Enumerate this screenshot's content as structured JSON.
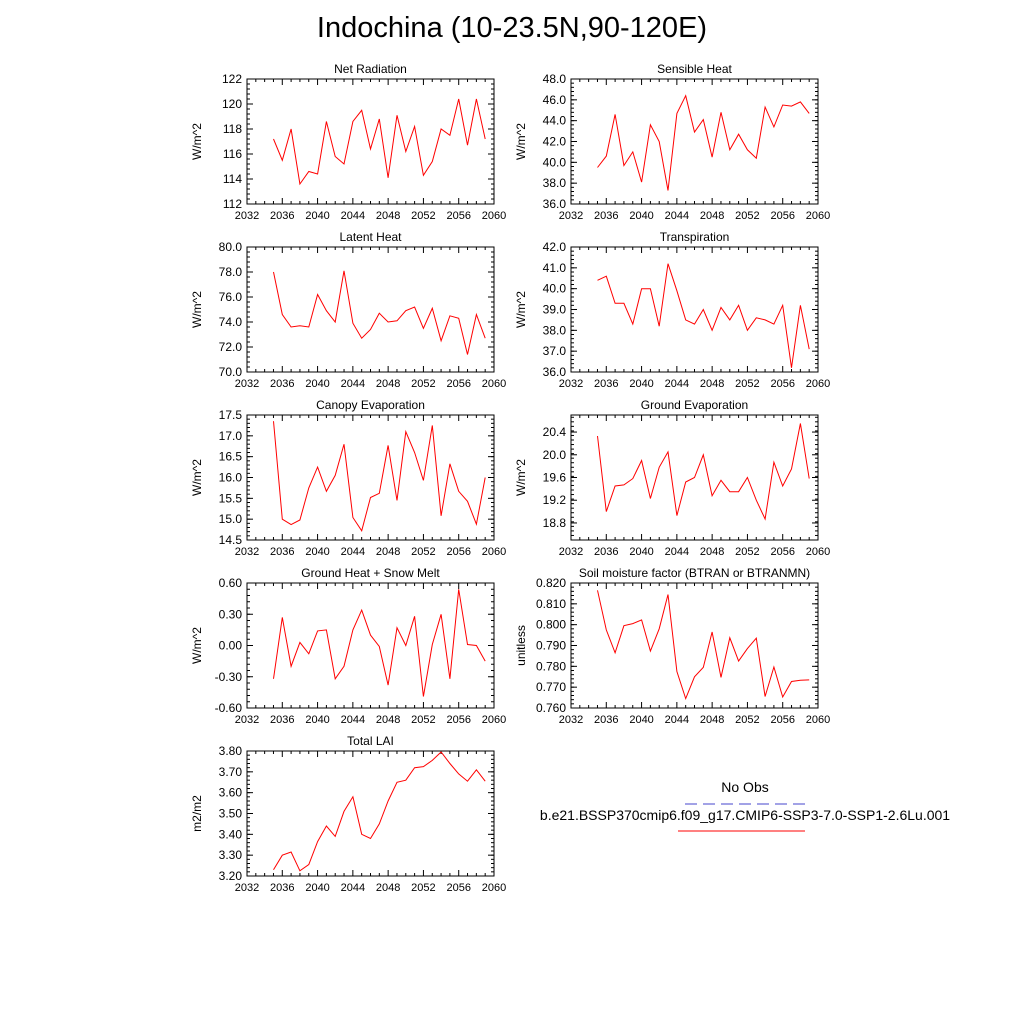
{
  "page_title": "Indochina (10-23.5N,90-120E)",
  "legend": {
    "entries": [
      {
        "label": "No Obs",
        "color": "#4444cc",
        "style": "dashed"
      },
      {
        "label": "b.e21.BSSP370cmip6.f09_g17.CMIP6-SSP3-7.0-SSP1-2.6Lu.001",
        "color": "#ff0000",
        "style": "solid"
      }
    ]
  },
  "chart_data": [
    {
      "type": "line",
      "title": "Net Radiation",
      "ylabel": "W/m^2",
      "x": [
        2035,
        2036,
        2037,
        2038,
        2039,
        2040,
        2041,
        2042,
        2043,
        2044,
        2045,
        2046,
        2047,
        2048,
        2049,
        2050,
        2051,
        2052,
        2053,
        2054,
        2055,
        2056,
        2057,
        2058,
        2059
      ],
      "xlim": [
        2032,
        2060
      ],
      "xticks": [
        "2032",
        "2036",
        "2040",
        "2044",
        "2048",
        "2052",
        "2056",
        "2060"
      ],
      "ylim": [
        112,
        122
      ],
      "yticks": [
        "112",
        "114",
        "116",
        "118",
        "120",
        "122"
      ],
      "series": [
        {
          "color": "#ff0000",
          "values": [
            117.2,
            115.5,
            118.0,
            113.6,
            114.6,
            114.4,
            118.6,
            115.8,
            115.2,
            118.6,
            119.5,
            116.4,
            118.8,
            114.1,
            119.1,
            116.2,
            118.2,
            114.3,
            115.4,
            118.0,
            117.5,
            120.4,
            116.7,
            120.4,
            117.2
          ]
        }
      ]
    },
    {
      "type": "line",
      "title": "Sensible Heat",
      "ylabel": "W/m^2",
      "x": [
        2035,
        2036,
        2037,
        2038,
        2039,
        2040,
        2041,
        2042,
        2043,
        2044,
        2045,
        2046,
        2047,
        2048,
        2049,
        2050,
        2051,
        2052,
        2053,
        2054,
        2055,
        2056,
        2057,
        2058,
        2059
      ],
      "xlim": [
        2032,
        2060
      ],
      "xticks": [
        "2032",
        "2036",
        "2040",
        "2044",
        "2048",
        "2052",
        "2056",
        "2060"
      ],
      "ylim": [
        36,
        48
      ],
      "yticks": [
        "36.0",
        "38.0",
        "40.0",
        "42.0",
        "44.0",
        "46.0",
        "48.0"
      ],
      "series": [
        {
          "color": "#ff0000",
          "values": [
            39.5,
            40.6,
            44.6,
            39.7,
            41.0,
            38.1,
            43.6,
            42.0,
            37.3,
            44.7,
            46.4,
            42.9,
            44.1,
            40.5,
            44.8,
            41.2,
            42.7,
            41.2,
            40.4,
            45.3,
            43.4,
            45.5,
            45.4,
            45.8,
            44.7
          ]
        }
      ]
    },
    {
      "type": "line",
      "title": "Latent Heat",
      "ylabel": "W/m^2",
      "x": [
        2035,
        2036,
        2037,
        2038,
        2039,
        2040,
        2041,
        2042,
        2043,
        2044,
        2045,
        2046,
        2047,
        2048,
        2049,
        2050,
        2051,
        2052,
        2053,
        2054,
        2055,
        2056,
        2057,
        2058,
        2059
      ],
      "xlim": [
        2032,
        2060
      ],
      "xticks": [
        "2032",
        "2036",
        "2040",
        "2044",
        "2048",
        "2052",
        "2056",
        "2060"
      ],
      "ylim": [
        70,
        80
      ],
      "yticks": [
        "70.0",
        "72.0",
        "74.0",
        "76.0",
        "78.0",
        "80.0"
      ],
      "series": [
        {
          "color": "#ff0000",
          "values": [
            78.0,
            74.6,
            73.6,
            73.7,
            73.6,
            76.2,
            74.9,
            74.0,
            78.1,
            73.9,
            72.7,
            73.4,
            74.7,
            74.0,
            74.1,
            74.9,
            75.2,
            73.5,
            75.1,
            72.5,
            74.5,
            74.3,
            71.4,
            74.6,
            72.7
          ]
        }
      ]
    },
    {
      "type": "line",
      "title": "Transpiration",
      "ylabel": "W/m^2",
      "x": [
        2035,
        2036,
        2037,
        2038,
        2039,
        2040,
        2041,
        2042,
        2043,
        2044,
        2045,
        2046,
        2047,
        2048,
        2049,
        2050,
        2051,
        2052,
        2053,
        2054,
        2055,
        2056,
        2057,
        2058,
        2059
      ],
      "xlim": [
        2032,
        2060
      ],
      "xticks": [
        "2032",
        "2036",
        "2040",
        "2044",
        "2048",
        "2052",
        "2056",
        "2060"
      ],
      "ylim": [
        36,
        42
      ],
      "yticks": [
        "36.0",
        "37.0",
        "38.0",
        "39.0",
        "40.0",
        "41.0",
        "42.0"
      ],
      "series": [
        {
          "color": "#ff0000",
          "values": [
            40.4,
            40.6,
            39.3,
            39.3,
            38.3,
            40.0,
            40.0,
            38.2,
            41.2,
            39.9,
            38.5,
            38.3,
            39.0,
            38.0,
            39.1,
            38.5,
            39.2,
            38.0,
            38.6,
            38.5,
            38.3,
            39.2,
            36.2,
            39.2,
            37.1
          ]
        }
      ]
    },
    {
      "type": "line",
      "title": "Canopy Evaporation",
      "ylabel": "W/m^2",
      "x": [
        2035,
        2036,
        2037,
        2038,
        2039,
        2040,
        2041,
        2042,
        2043,
        2044,
        2045,
        2046,
        2047,
        2048,
        2049,
        2050,
        2051,
        2052,
        2053,
        2054,
        2055,
        2056,
        2057,
        2058,
        2059
      ],
      "xlim": [
        2032,
        2060
      ],
      "xticks": [
        "2032",
        "2036",
        "2040",
        "2044",
        "2048",
        "2052",
        "2056",
        "2060"
      ],
      "ylim": [
        14.5,
        17.5
      ],
      "yticks": [
        "14.5",
        "15.0",
        "15.5",
        "16.0",
        "16.5",
        "17.0",
        "17.5"
      ],
      "series": [
        {
          "color": "#ff0000",
          "values": [
            17.35,
            15.0,
            14.87,
            14.98,
            15.75,
            16.25,
            15.67,
            16.05,
            16.8,
            15.04,
            14.72,
            15.52,
            15.62,
            16.77,
            15.45,
            17.1,
            16.6,
            15.93,
            17.25,
            15.08,
            16.33,
            15.67,
            15.43,
            14.88,
            16.0
          ]
        }
      ]
    },
    {
      "type": "line",
      "title": "Ground Evaporation",
      "ylabel": "W/m^2",
      "x": [
        2035,
        2036,
        2037,
        2038,
        2039,
        2040,
        2041,
        2042,
        2043,
        2044,
        2045,
        2046,
        2047,
        2048,
        2049,
        2050,
        2051,
        2052,
        2053,
        2054,
        2055,
        2056,
        2057,
        2058,
        2059
      ],
      "xlim": [
        2032,
        2060
      ],
      "xticks": [
        "2032",
        "2036",
        "2040",
        "2044",
        "2048",
        "2052",
        "2056",
        "2060"
      ],
      "ylim": [
        18.5,
        20.7
      ],
      "yticks": [
        "18.8",
        "19.2",
        "19.6",
        "20.0",
        "20.4"
      ],
      "series": [
        {
          "color": "#ff0000",
          "values": [
            20.33,
            19.0,
            19.45,
            19.47,
            19.58,
            19.9,
            19.23,
            19.78,
            20.05,
            18.93,
            19.52,
            19.6,
            20.0,
            19.28,
            19.55,
            19.35,
            19.35,
            19.6,
            19.2,
            18.87,
            19.87,
            19.45,
            19.75,
            20.55,
            19.58
          ]
        }
      ]
    },
    {
      "type": "line",
      "title": "Ground Heat + Snow Melt",
      "ylabel": "W/m^2",
      "x": [
        2035,
        2036,
        2037,
        2038,
        2039,
        2040,
        2041,
        2042,
        2043,
        2044,
        2045,
        2046,
        2047,
        2048,
        2049,
        2050,
        2051,
        2052,
        2053,
        2054,
        2055,
        2056,
        2057,
        2058,
        2059
      ],
      "xlim": [
        2032,
        2060
      ],
      "xticks": [
        "2032",
        "2036",
        "2040",
        "2044",
        "2048",
        "2052",
        "2056",
        "2060"
      ],
      "ylim": [
        -0.6,
        0.6
      ],
      "yticks": [
        "-0.60",
        "-0.30",
        "0.00",
        "0.30",
        "0.60"
      ],
      "series": [
        {
          "color": "#ff0000",
          "values": [
            -0.32,
            0.27,
            -0.2,
            0.03,
            -0.08,
            0.14,
            0.15,
            -0.32,
            -0.2,
            0.15,
            0.34,
            0.1,
            -0.01,
            -0.38,
            0.17,
            0.0,
            0.28,
            -0.49,
            0.01,
            0.3,
            -0.32,
            0.54,
            0.01,
            0.0,
            -0.15
          ]
        }
      ]
    },
    {
      "type": "line",
      "title": "Soil moisture factor (BTRAN or BTRANMN)",
      "ylabel": "unitless",
      "x": [
        2035,
        2036,
        2037,
        2038,
        2039,
        2040,
        2041,
        2042,
        2043,
        2044,
        2045,
        2046,
        2047,
        2048,
        2049,
        2050,
        2051,
        2052,
        2053,
        2054,
        2055,
        2056,
        2057,
        2058,
        2059
      ],
      "xlim": [
        2032,
        2060
      ],
      "xticks": [
        "2032",
        "2036",
        "2040",
        "2044",
        "2048",
        "2052",
        "2056",
        "2060"
      ],
      "ylim": [
        0.76,
        0.82
      ],
      "yticks": [
        "0.760",
        "0.770",
        "0.780",
        "0.790",
        "0.800",
        "0.810",
        "0.820"
      ],
      "series": [
        {
          "color": "#ff0000",
          "values": [
            0.8165,
            0.7975,
            0.7865,
            0.7995,
            0.8005,
            0.8023,
            0.7873,
            0.798,
            0.8145,
            0.7775,
            0.7645,
            0.775,
            0.7795,
            0.7965,
            0.7747,
            0.7937,
            0.7825,
            0.7885,
            0.7935,
            0.7655,
            0.7797,
            0.7653,
            0.7727,
            0.7733,
            0.7735
          ]
        }
      ]
    },
    {
      "type": "line",
      "title": "Total LAI",
      "ylabel": "m2/m2",
      "x": [
        2035,
        2036,
        2037,
        2038,
        2039,
        2040,
        2041,
        2042,
        2043,
        2044,
        2045,
        2046,
        2047,
        2048,
        2049,
        2050,
        2051,
        2052,
        2053,
        2054,
        2055,
        2056,
        2057,
        2058,
        2059
      ],
      "xlim": [
        2032,
        2060
      ],
      "xticks": [
        "2032",
        "2036",
        "2040",
        "2044",
        "2048",
        "2052",
        "2056",
        "2060"
      ],
      "ylim": [
        3.2,
        3.8
      ],
      "yticks": [
        "3.20",
        "3.30",
        "3.40",
        "3.50",
        "3.60",
        "3.70",
        "3.80"
      ],
      "series": [
        {
          "color": "#ff0000",
          "values": [
            3.23,
            3.3,
            3.315,
            3.225,
            3.255,
            3.365,
            3.44,
            3.39,
            3.51,
            3.58,
            3.4,
            3.38,
            3.45,
            3.56,
            3.65,
            3.66,
            3.72,
            3.725,
            3.755,
            3.795,
            3.74,
            3.69,
            3.655,
            3.71,
            3.655
          ]
        }
      ]
    }
  ]
}
